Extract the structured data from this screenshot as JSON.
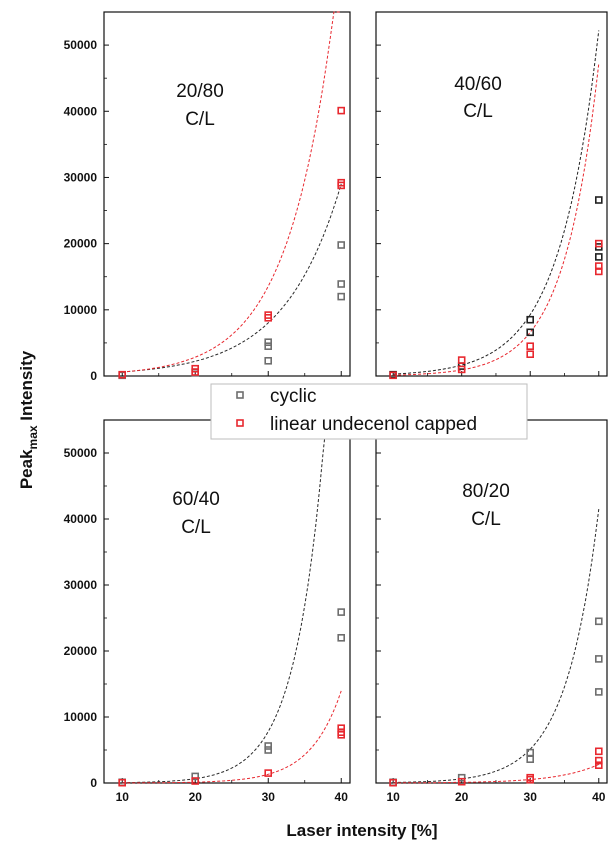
{
  "figure": {
    "ylabel_main": "Peak",
    "ylabel_sub": "max",
    "ylabel_tail": " Intensity",
    "xlabel": "Laser intensity [%]"
  },
  "legend": {
    "items": [
      {
        "label": "cyclic",
        "color": "#6e6e6e"
      },
      {
        "label": "linear undecenol capped",
        "color": "#e8282f"
      }
    ]
  },
  "chart_data": [
    {
      "type": "scatter",
      "panel_label": [
        "20/80",
        "C/L"
      ],
      "x_ticks": [
        10,
        20,
        30,
        40
      ],
      "y_ticks": [
        0,
        10000,
        20000,
        30000,
        40000,
        50000
      ],
      "ylim": [
        0,
        55000
      ],
      "series": [
        {
          "name": "cyclic",
          "color": "#6e6e6e",
          "fit_color": "#2a2a2a",
          "x": [
            10,
            20,
            30,
            30,
            30,
            40,
            40,
            40
          ],
          "y": [
            100,
            500,
            2300,
            4500,
            5100,
            12000,
            13900,
            19800
          ],
          "fit": {
            "a": 170,
            "b": 0.1285
          }
        },
        {
          "name": "linear undecenol capped",
          "color": "#e8282f",
          "fit_color": "#e8282f",
          "x": [
            10,
            20,
            20,
            30,
            30,
            40,
            40,
            40
          ],
          "y": [
            200,
            600,
            1100,
            8800,
            9200,
            28800,
            29200,
            40100
          ],
          "fit": {
            "a": 125,
            "b": 0.1562
          }
        }
      ]
    },
    {
      "type": "scatter",
      "panel_label": [
        "40/60",
        "C/L"
      ],
      "x_ticks": [
        10,
        20,
        30,
        40
      ],
      "y_ticks": [
        0,
        10000,
        20000,
        30000,
        40000,
        50000
      ],
      "ylim": [
        0,
        55000
      ],
      "series": [
        {
          "name": "cyclic",
          "color": "#222222",
          "fit_color": "#222222",
          "x": [
            10,
            20,
            30,
            30,
            40,
            40,
            40
          ],
          "y": [
            200,
            1500,
            6600,
            8500,
            18000,
            19500,
            26600
          ],
          "fit": {
            "a": 52,
            "b": 0.1728
          }
        },
        {
          "name": "linear undecenol capped",
          "color": "#e8282f",
          "fit_color": "#e8282f",
          "x": [
            10,
            20,
            20,
            30,
            30,
            40,
            40,
            40
          ],
          "y": [
            100,
            1000,
            2400,
            3300,
            4500,
            15800,
            16600,
            20000
          ],
          "fit": {
            "a": 18,
            "b": 0.1968
          }
        }
      ]
    },
    {
      "type": "scatter",
      "panel_label": [
        "60/40",
        "C/L"
      ],
      "x_ticks": [
        10,
        20,
        30,
        40
      ],
      "y_ticks": [
        0,
        10000,
        20000,
        30000,
        40000,
        50000
      ],
      "ylim": [
        0,
        55000
      ],
      "series": [
        {
          "name": "cyclic",
          "color": "#6e6e6e",
          "fit_color": "#2a2a2a",
          "x": [
            10,
            20,
            30,
            30,
            40,
            40
          ],
          "y": [
            100,
            1000,
            5000,
            5600,
            22000,
            25900
          ],
          "fit": {
            "a": 4.6,
            "b": 0.2478
          }
        },
        {
          "name": "linear undecenol capped",
          "color": "#e8282f",
          "fit_color": "#e8282f",
          "x": [
            10,
            20,
            30,
            40,
            40,
            40
          ],
          "y": [
            50,
            300,
            1500,
            7300,
            7700,
            8300
          ],
          "fit": {
            "a": 1.1,
            "b": 0.2362
          }
        }
      ]
    },
    {
      "type": "scatter",
      "panel_label": [
        "80/20",
        "C/L"
      ],
      "x_ticks": [
        10,
        20,
        30,
        40
      ],
      "y_ticks": [
        0,
        10000,
        20000,
        30000,
        40000,
        50000
      ],
      "ylim": [
        0,
        55000
      ],
      "series": [
        {
          "name": "cyclic",
          "color": "#6e6e6e",
          "fit_color": "#2a2a2a",
          "x": [
            10,
            20,
            30,
            30,
            40,
            40,
            40
          ],
          "y": [
            100,
            800,
            3600,
            4600,
            13800,
            18800,
            24500
          ],
          "fit": {
            "a": 9.6,
            "b": 0.2093
          }
        },
        {
          "name": "linear undecenol capped",
          "color": "#e8282f",
          "fit_color": "#e8282f",
          "x": [
            10,
            20,
            30,
            30,
            40,
            40,
            40
          ],
          "y": [
            50,
            200,
            500,
            800,
            2700,
            3400,
            4800
          ],
          "fit": {
            "a": 3.5,
            "b": 0.1673
          }
        }
      ]
    }
  ]
}
